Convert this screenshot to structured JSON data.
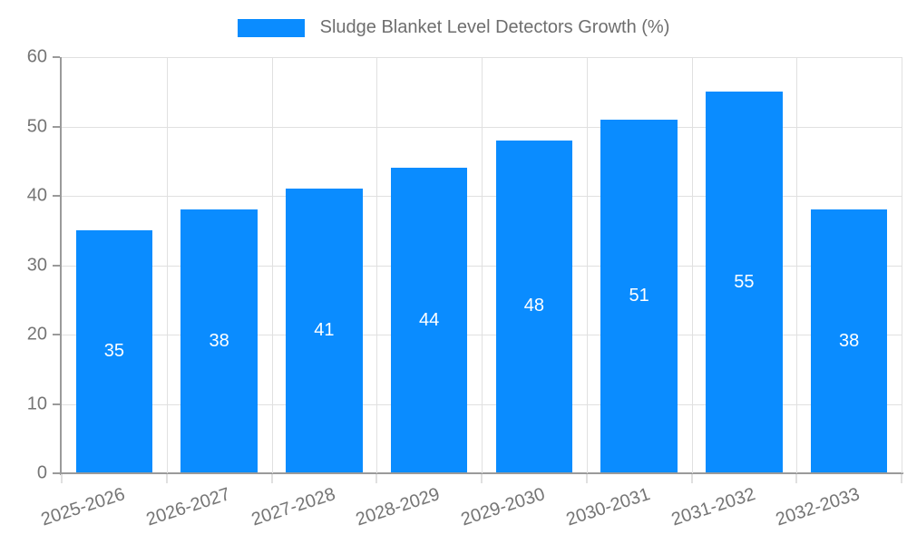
{
  "legend": {
    "label": "Sludge Blanket Level Detectors Growth (%)"
  },
  "colors": {
    "bar": "#0a8cff",
    "value_text": "#ffffff",
    "legend_text": "#6e6e6e",
    "tick_text": "#757575",
    "axis_line": "#9a9a9a",
    "gridline": "#e0e0e0"
  },
  "chart_data": {
    "type": "bar",
    "title": "Sludge Blanket Level Detectors Growth (%)",
    "categories": [
      "2025-2026",
      "2026-2027",
      "2027-2028",
      "2028-2029",
      "2029-2030",
      "2030-2031",
      "2031-2032",
      "2032-2033"
    ],
    "values": [
      35,
      38,
      41,
      44,
      48,
      51,
      55,
      38
    ],
    "xlabel": "",
    "ylabel": "",
    "ylim": [
      0,
      60
    ],
    "yticks": [
      0,
      10,
      20,
      30,
      40,
      50,
      60
    ],
    "grid": true,
    "legend_position": "top-center",
    "value_labels": "inside-center",
    "x_tick_rotation_deg": -18
  }
}
